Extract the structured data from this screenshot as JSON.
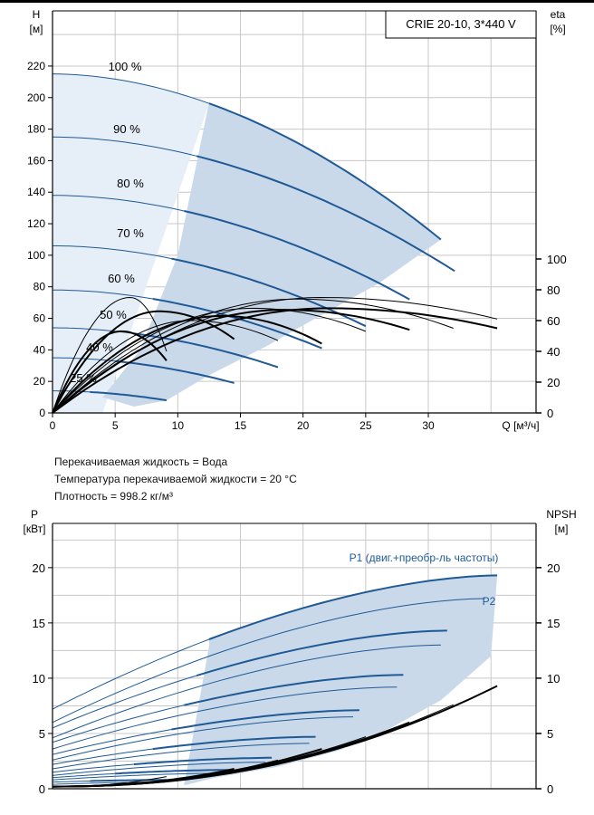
{
  "header_box": "CRIE 20-10, 3*440 V",
  "fluid_info": {
    "liquid": "Перекачиваемая жидкость = Вода",
    "temperature": "Температура перекачиваемой жидкости = 20 °C",
    "density": "Плотность = 998.2 кг/м³"
  },
  "colors": {
    "curve_blue": "#1f5a96",
    "fill_light": "#e6eff8",
    "fill_mid": "#c9d9ea",
    "grid": "#c8c8c8",
    "black": "#000000"
  },
  "chart_data": [
    {
      "type": "line",
      "title": "",
      "xlabel": "Q [м³/ч]",
      "ylabel_left": [
        "H",
        "[м]"
      ],
      "ylabel_right": [
        "eta",
        "[%]"
      ],
      "x_ticks": [
        "0",
        "5",
        "10",
        "15",
        "20",
        "25",
        "30"
      ],
      "y_left_ticks": [
        "0",
        "20",
        "40",
        "60",
        "80",
        "100",
        "120",
        "140",
        "160",
        "180",
        "200",
        "220"
      ],
      "y_right_ticks": [
        "0",
        "20",
        "40",
        "60",
        "80",
        "100"
      ],
      "xlim": [
        0,
        38.6
      ],
      "ylim_left": [
        0,
        255
      ],
      "ylim_right_eta": [
        0,
        100
      ],
      "grid": true,
      "speed_labels": [
        "100 %",
        "90 %",
        "80 %",
        "70 %",
        "60 %",
        "50 %",
        "40 %",
        "25 %"
      ],
      "head_series": [
        {
          "speed": 100,
          "H0": 215,
          "Qmax": 31,
          "Hend": 110
        },
        {
          "speed": 90,
          "H0": 175,
          "Qmax": 32.1,
          "Hend": 90
        },
        {
          "speed": 80,
          "H0": 138,
          "Qmax": 28.5,
          "Hend": 72
        },
        {
          "speed": 70,
          "H0": 106,
          "Qmax": 25,
          "Hend": 55
        },
        {
          "speed": 60,
          "H0": 78,
          "Qmax": 21.5,
          "Hend": 41
        },
        {
          "speed": 50,
          "H0": 54,
          "Qmax": 18,
          "Hend": 29
        },
        {
          "speed": 40,
          "H0": 35,
          "Qmax": 14.5,
          "Hend": 19
        },
        {
          "speed": 25,
          "H0": 14,
          "Qmax": 9.1,
          "Hend": 8
        }
      ],
      "eta_series": [
        {
          "speed": 100,
          "Qmax": 35.5,
          "peak": 75,
          "Qpeak": 21.5,
          "end": 61
        },
        {
          "speed": 90,
          "Qmax": 35.5,
          "peak": 68,
          "Qpeak": 22,
          "end": 55
        },
        {
          "speed": 80,
          "Qmax": 32,
          "peak": 74,
          "Qpeak": 19.5,
          "end": 55
        },
        {
          "speed": 70,
          "Qmax": 28.5,
          "peak": 67,
          "Qpeak": 18.5,
          "end": 54
        },
        {
          "speed": 60,
          "Qmax": 25,
          "peak": 68,
          "Qpeak": 16,
          "end": 53
        },
        {
          "speed": 50,
          "Qmax": 21.5,
          "peak": 63,
          "Qpeak": 13.5,
          "end": 45
        },
        {
          "speed": 40,
          "Qmax": 18,
          "peak": 60,
          "Qpeak": 11,
          "end": 47
        },
        {
          "speed": 25,
          "Qmax": 14.5,
          "peak": 66,
          "Qpeak": 8.5,
          "end": 48
        },
        {
          "speed": 20,
          "Qmax": 9.1,
          "peak": 75,
          "Qpeak": 6.2,
          "end": 40
        },
        {
          "speed": 15,
          "Qmax": 9.1,
          "peak": 53,
          "Qpeak": 5.5,
          "end": 34
        }
      ]
    },
    {
      "type": "line",
      "title": "",
      "ylabel_left": [
        "P",
        "[кВт]"
      ],
      "ylabel_right": [
        "NPSH",
        "[м]"
      ],
      "x_ticks": [],
      "y_left_ticks": [
        "0",
        "5",
        "10",
        "15",
        "20"
      ],
      "y_right_ticks": [
        "0",
        "5",
        "10",
        "15",
        "20"
      ],
      "xlim": [
        0,
        38.6
      ],
      "ylim": [
        0,
        24
      ],
      "grid": true,
      "series_labels": [
        "P1 (двиг.+преобр-ль частоты)",
        "P2"
      ],
      "p1_series": [
        {
          "Qmax": 35.5,
          "P0": 7.2,
          "Pend": 19.3,
          "Qbold": 12.5
        },
        {
          "Qmax": 31.5,
          "P0": 5.5,
          "Pend": 14.3,
          "Qbold": 11.5
        },
        {
          "Qmax": 28,
          "P0": 4.2,
          "Pend": 10.3,
          "Qbold": 10.5
        },
        {
          "Qmax": 24.5,
          "P0": 3.1,
          "Pend": 7.1,
          "Qbold": 9.5
        },
        {
          "Qmax": 21,
          "P0": 2.2,
          "Pend": 4.7,
          "Qbold": 8
        },
        {
          "Qmax": 17.5,
          "P0": 1.5,
          "Pend": 2.8,
          "Qbold": 6.5
        },
        {
          "Qmax": 14,
          "P0": 1,
          "Pend": 1.7,
          "Qbold": 5
        },
        {
          "Qmax": 9.1,
          "P0": 0.6,
          "Pend": 0.8,
          "Qbold": 3
        }
      ],
      "p2_series": [
        {
          "Qmax": 34.5,
          "P0": 6,
          "Pend": 17.2
        },
        {
          "Qmax": 31,
          "P0": 4.6,
          "Pend": 13
        },
        {
          "Qmax": 27.5,
          "P0": 3.6,
          "Pend": 9.2
        },
        {
          "Qmax": 24,
          "P0": 2.6,
          "Pend": 6.5
        },
        {
          "Qmax": 20.5,
          "P0": 1.8,
          "Pend": 4.1
        },
        {
          "Qmax": 17,
          "P0": 1.2,
          "Pend": 2.4
        },
        {
          "Qmax": 13.5,
          "P0": 0.8,
          "Pend": 1.4
        },
        {
          "Qmax": 9,
          "P0": 0.4,
          "Pend": 0.6
        }
      ],
      "npsh_series": [
        {
          "Qmax": 35.5,
          "end": 9.3
        },
        {
          "Qmax": 32,
          "end": 7.6
        },
        {
          "Qmax": 28.5,
          "end": 6
        },
        {
          "Qmax": 25,
          "end": 4.7
        },
        {
          "Qmax": 21.5,
          "end": 3.6
        },
        {
          "Qmax": 18,
          "end": 2.6
        },
        {
          "Qmax": 14.5,
          "end": 1.8
        },
        {
          "Qmax": 9.1,
          "end": 1.1
        }
      ]
    }
  ]
}
